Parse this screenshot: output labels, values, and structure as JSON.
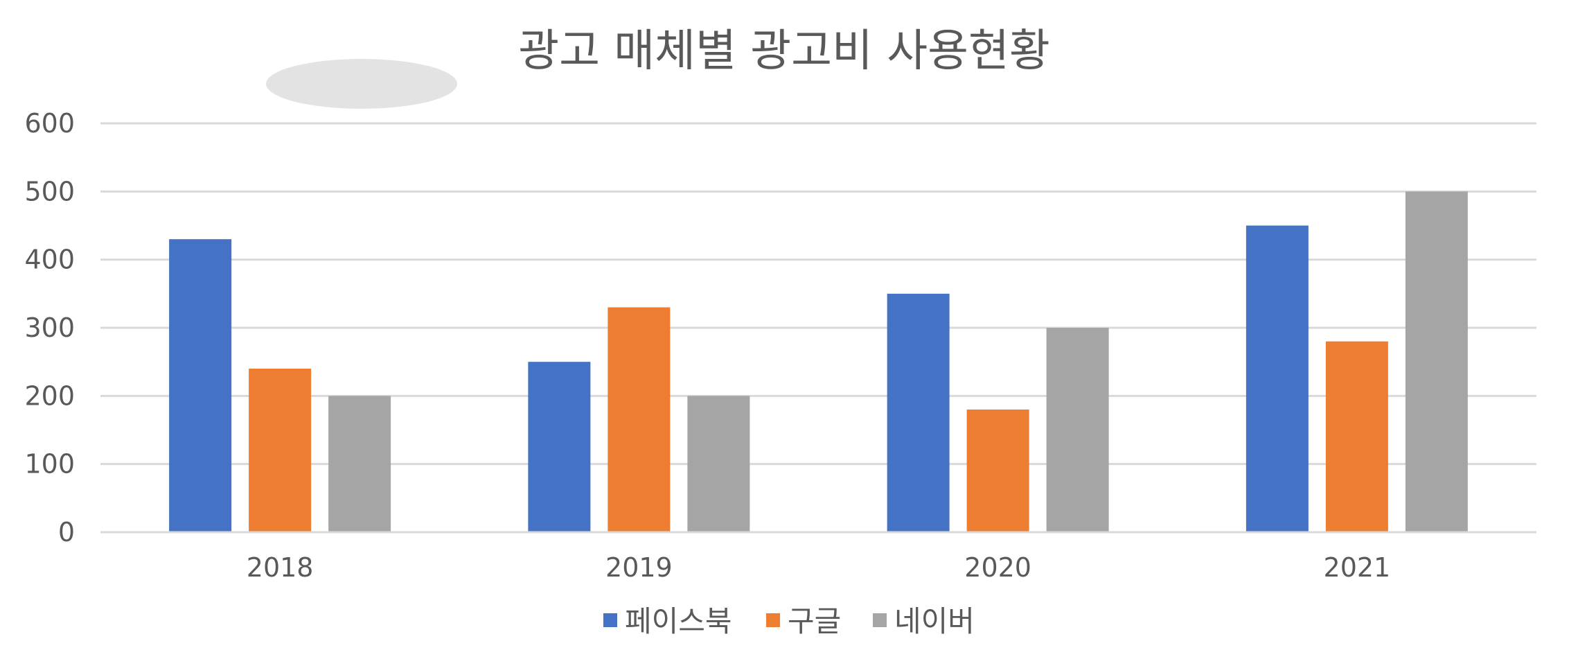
{
  "chart_data": {
    "type": "bar",
    "title": "광고 매체별 광고비 사용현황",
    "categories": [
      "2018",
      "2019",
      "2020",
      "2021"
    ],
    "series": [
      {
        "name": "페이스북",
        "values": [
          430,
          250,
          350,
          450
        ],
        "color": "#4472C4"
      },
      {
        "name": "구글",
        "values": [
          240,
          330,
          180,
          280
        ],
        "color": "#ED7D31"
      },
      {
        "name": "네이버",
        "values": [
          200,
          200,
          300,
          500
        ],
        "color": "#A5A5A5"
      }
    ],
    "ylim": [
      0,
      600
    ],
    "yticks": [
      "0",
      "100",
      "200",
      "300",
      "400",
      "500",
      "600"
    ],
    "grid": true,
    "legend_position": "bottom"
  }
}
